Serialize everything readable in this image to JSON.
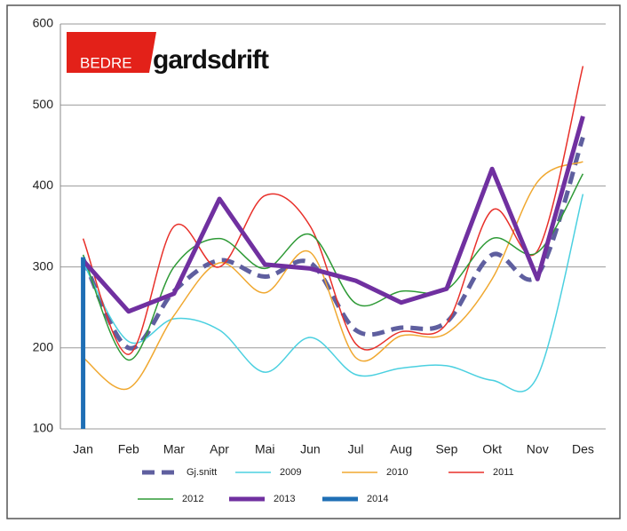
{
  "logo": {
    "red": "BEDRE",
    "black": "gardsdrift"
  },
  "chart_data": {
    "type": "line",
    "categories": [
      "Jan",
      "Feb",
      "Mar",
      "Apr",
      "Mai",
      "Jun",
      "Jul",
      "Aug",
      "Sep",
      "Okt",
      "Nov",
      "Des"
    ],
    "ylim": [
      100,
      600
    ],
    "yticks": [
      100,
      200,
      300,
      400,
      500,
      600
    ],
    "grid": true,
    "legend": "bottom",
    "series": [
      {
        "name": "Gj.snitt",
        "color": "#5f5f9f",
        "dashed": true,
        "smooth": true,
        "values": [
          310,
          200,
          270,
          308,
          288,
          305,
          222,
          225,
          232,
          315,
          290,
          460
        ]
      },
      {
        "name": "2009",
        "color": "#4bd0e0",
        "smooth": true,
        "values": [
          305,
          208,
          236,
          222,
          170,
          213,
          167,
          175,
          178,
          160,
          165,
          390
        ]
      },
      {
        "name": "2010",
        "color": "#f0a830",
        "smooth": true,
        "values": [
          188,
          150,
          240,
          305,
          268,
          318,
          188,
          215,
          218,
          285,
          405,
          430
        ]
      },
      {
        "name": "2011",
        "color": "#e8302a",
        "smooth": true,
        "values": [
          335,
          192,
          350,
          300,
          388,
          350,
          205,
          220,
          230,
          370,
          320,
          548
        ]
      },
      {
        "name": "2012",
        "color": "#2e9a36",
        "smooth": true,
        "values": [
          315,
          185,
          300,
          335,
          298,
          340,
          255,
          270,
          272,
          335,
          318,
          415
        ]
      },
      {
        "name": "2013",
        "color": "#7030a0",
        "smooth": false,
        "values": [
          308,
          245,
          267,
          384,
          303,
          298,
          283,
          256,
          273,
          421,
          285,
          486
        ]
      },
      {
        "name": "2014",
        "color": "#1f6fb5",
        "smooth": false,
        "values": [
          312,
          null,
          null,
          null,
          null,
          null,
          null,
          null,
          null,
          null,
          null,
          null
        ]
      }
    ]
  }
}
